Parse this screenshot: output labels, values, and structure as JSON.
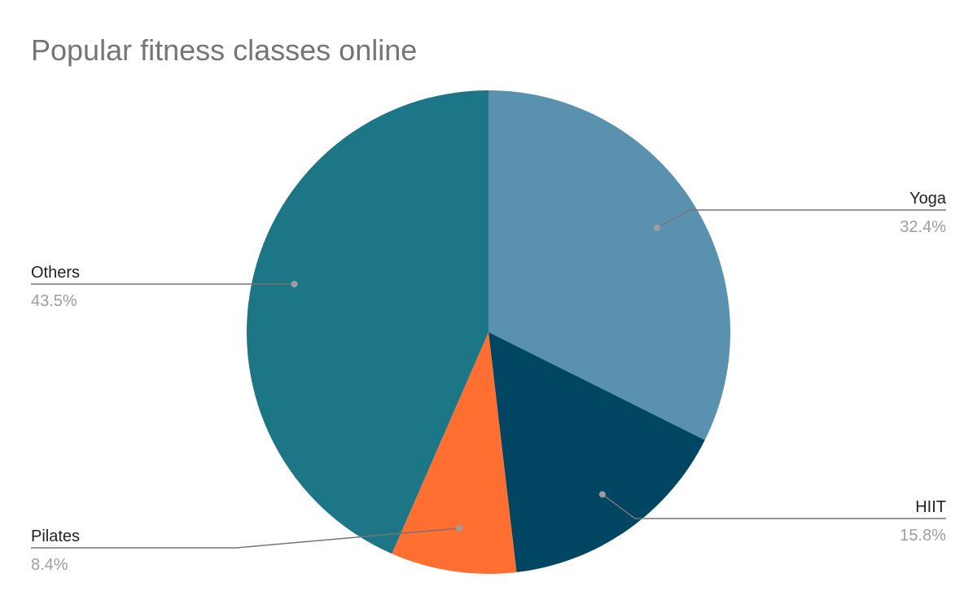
{
  "chart_data": {
    "type": "pie",
    "title": "Popular fitness classes online",
    "start_angle": "top, clockwise",
    "slices": [
      {
        "label": "Yoga",
        "value": 32.4,
        "display": "32.4%",
        "color": "#5a91ae"
      },
      {
        "label": "HIIT",
        "value": 15.8,
        "display": "15.8%",
        "color": "#004561"
      },
      {
        "label": "Pilates",
        "value": 8.4,
        "display": "8.4%",
        "color": "#ff6f31"
      },
      {
        "label": "Others",
        "value": 43.5,
        "display": "43.5%",
        "color": "#1c7685"
      }
    ],
    "legend": "none (callout labels)"
  }
}
